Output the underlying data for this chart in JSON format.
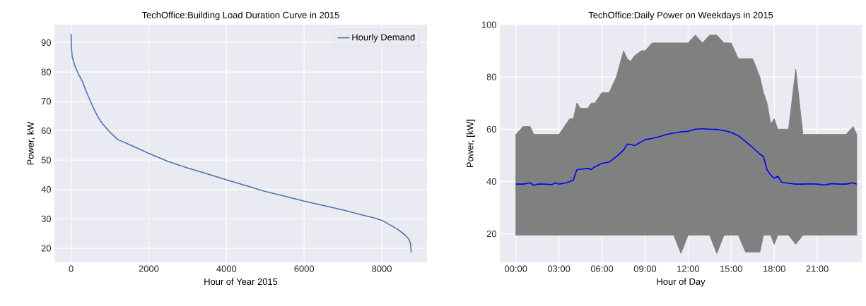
{
  "chart_data": [
    {
      "type": "line",
      "title": "TechOffice:Building Load Duration Curve in 2015",
      "xlabel": "Hour of Year 2015",
      "ylabel": "Power, kW",
      "series": [
        {
          "name": "Hourly Demand",
          "color": "#4c72b0",
          "x": [
            0,
            10,
            30,
            100,
            200,
            300,
            400,
            500,
            600,
            700,
            800,
            1000,
            1200,
            1500,
            2000,
            2500,
            3000,
            3500,
            4000,
            4500,
            5000,
            5500,
            6000,
            6500,
            7000,
            7500,
            7800,
            8000,
            8200,
            8400,
            8600,
            8700,
            8740,
            8759
          ],
          "values": [
            93,
            88,
            85,
            82,
            79,
            76.5,
            73,
            70,
            67,
            64.5,
            62.5,
            59.5,
            57,
            55.3,
            52.3,
            49.5,
            47.3,
            45.3,
            43.3,
            41.3,
            39.3,
            37.7,
            36,
            34.5,
            33,
            31.3,
            30.3,
            29.5,
            28,
            26.5,
            24.5,
            23,
            21.5,
            18.5
          ]
        }
      ],
      "xlim": [
        -429,
        9164
      ],
      "ylim": [
        15.2,
        96.1
      ],
      "xticks": [
        0,
        2000,
        4000,
        6000,
        8000
      ],
      "yticks": [
        20,
        30,
        40,
        50,
        60,
        70,
        80,
        90
      ],
      "grid": true,
      "legend": "top right"
    },
    {
      "type": "line",
      "title": "TechOffice:Daily Power on Weekdays in 2015",
      "xlabel": "Hour of Day",
      "ylabel": "Power, [kW]",
      "series": [
        {
          "color": "#0000ff",
          "x": [
            0,
            0.5,
            1,
            1.25,
            1.5,
            2,
            2.5,
            2.75,
            3,
            3.5,
            3.75,
            4,
            4.25,
            4.5,
            5,
            5.25,
            5.5,
            6,
            6.5,
            7,
            7.5,
            7.75,
            8,
            8.25,
            8.75,
            9,
            9.5,
            10,
            10.5,
            11,
            11.5,
            12,
            12.5,
            13,
            13.5,
            14,
            14.5,
            15,
            15.5,
            16,
            16.5,
            17,
            17.25,
            17.5,
            17.75,
            18,
            18.25,
            18.5,
            19,
            19.5,
            20,
            20.5,
            21,
            21.5,
            22,
            22.5,
            23,
            23.5,
            23.75
          ],
          "values": [
            39,
            39,
            39.5,
            38.5,
            39,
            39,
            38.8,
            39.5,
            39,
            39.5,
            40,
            40.6,
            44.5,
            44.7,
            45,
            44.6,
            45.6,
            47,
            47.4,
            49.5,
            52,
            54.3,
            54.2,
            53.7,
            55.2,
            56,
            56.5,
            57.2,
            58,
            58.5,
            59,
            59.2,
            60,
            60.2,
            60,
            59.9,
            59.5,
            58.8,
            57.5,
            55.3,
            53,
            50.5,
            49.5,
            44.5,
            42.5,
            41.2,
            42,
            39.8,
            39.3,
            39,
            39,
            39.1,
            39,
            38.7,
            39.2,
            39,
            39,
            39.5,
            39
          ],
          "upper": [
            58,
            61,
            61,
            58,
            58,
            58,
            58,
            58,
            58,
            62,
            64,
            64,
            70,
            68,
            68,
            70,
            70,
            74,
            74,
            80,
            90,
            87,
            86,
            88,
            90,
            90,
            93,
            93,
            93,
            93,
            93,
            93,
            96,
            93,
            96,
            96,
            93,
            93,
            87,
            87,
            87,
            80,
            74,
            70,
            62,
            64,
            60,
            60,
            60,
            83,
            58,
            58,
            58,
            58,
            58,
            58,
            58,
            61,
            58
          ],
          "lower": [
            19.5,
            19.5,
            19.5,
            19.5,
            19.5,
            19.5,
            19.5,
            19.5,
            19.5,
            19.5,
            19.5,
            19.5,
            19.5,
            19.5,
            19.5,
            19.5,
            19.5,
            19.5,
            19.5,
            19.5,
            19.5,
            19.5,
            19.5,
            19.5,
            19.5,
            19.5,
            19.5,
            19.5,
            19.5,
            19.5,
            12.5,
            19.5,
            19.5,
            19.5,
            19.5,
            12.5,
            19.5,
            19.5,
            19.5,
            13,
            13,
            13,
            19.5,
            19.5,
            19.5,
            16,
            19.5,
            19.5,
            19.5,
            16,
            19.5,
            19.5,
            19.5,
            19.5,
            19.5,
            19.5,
            19.5,
            19.5,
            19.5
          ]
        }
      ],
      "xlim": [
        -1.12,
        24.1
      ],
      "ylim": [
        9.1,
        100
      ],
      "xticks": [
        {
          "value": 0,
          "label": "00:00"
        },
        {
          "value": 3,
          "label": "03:00"
        },
        {
          "value": 6,
          "label": "06:00"
        },
        {
          "value": 9,
          "label": "09:00"
        },
        {
          "value": 12,
          "label": "12:00"
        },
        {
          "value": 15,
          "label": "15:00"
        },
        {
          "value": 18,
          "label": "18:00"
        },
        {
          "value": 21,
          "label": "21:00"
        }
      ],
      "yticks": [
        20,
        40,
        60,
        80,
        100
      ],
      "grid": true
    }
  ]
}
